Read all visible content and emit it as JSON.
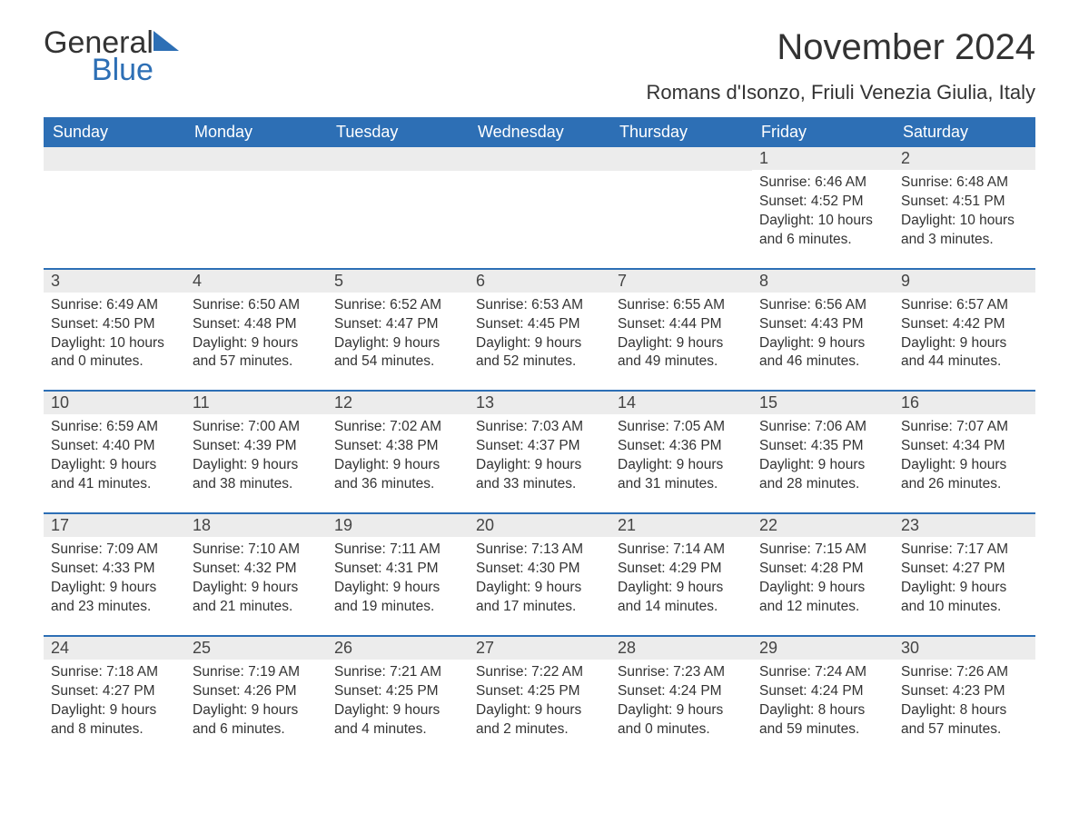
{
  "logo": {
    "line1": "General",
    "line2": "Blue"
  },
  "title": "November 2024",
  "location": "Romans d'Isonzo, Friuli Venezia Giulia, Italy",
  "accent_color": "#2d6fb5",
  "day_header_bg": "#2d6fb5",
  "day_header_fg": "#ffffff",
  "daynum_bg": "#ececec",
  "text_color": "#333333",
  "days_of_week": [
    "Sunday",
    "Monday",
    "Tuesday",
    "Wednesday",
    "Thursday",
    "Friday",
    "Saturday"
  ],
  "weeks": [
    [
      null,
      null,
      null,
      null,
      null,
      {
        "n": "1",
        "sunrise": "Sunrise: 6:46 AM",
        "sunset": "Sunset: 4:52 PM",
        "daylight1": "Daylight: 10 hours",
        "daylight2": "and 6 minutes."
      },
      {
        "n": "2",
        "sunrise": "Sunrise: 6:48 AM",
        "sunset": "Sunset: 4:51 PM",
        "daylight1": "Daylight: 10 hours",
        "daylight2": "and 3 minutes."
      }
    ],
    [
      {
        "n": "3",
        "sunrise": "Sunrise: 6:49 AM",
        "sunset": "Sunset: 4:50 PM",
        "daylight1": "Daylight: 10 hours",
        "daylight2": "and 0 minutes."
      },
      {
        "n": "4",
        "sunrise": "Sunrise: 6:50 AM",
        "sunset": "Sunset: 4:48 PM",
        "daylight1": "Daylight: 9 hours",
        "daylight2": "and 57 minutes."
      },
      {
        "n": "5",
        "sunrise": "Sunrise: 6:52 AM",
        "sunset": "Sunset: 4:47 PM",
        "daylight1": "Daylight: 9 hours",
        "daylight2": "and 54 minutes."
      },
      {
        "n": "6",
        "sunrise": "Sunrise: 6:53 AM",
        "sunset": "Sunset: 4:45 PM",
        "daylight1": "Daylight: 9 hours",
        "daylight2": "and 52 minutes."
      },
      {
        "n": "7",
        "sunrise": "Sunrise: 6:55 AM",
        "sunset": "Sunset: 4:44 PM",
        "daylight1": "Daylight: 9 hours",
        "daylight2": "and 49 minutes."
      },
      {
        "n": "8",
        "sunrise": "Sunrise: 6:56 AM",
        "sunset": "Sunset: 4:43 PM",
        "daylight1": "Daylight: 9 hours",
        "daylight2": "and 46 minutes."
      },
      {
        "n": "9",
        "sunrise": "Sunrise: 6:57 AM",
        "sunset": "Sunset: 4:42 PM",
        "daylight1": "Daylight: 9 hours",
        "daylight2": "and 44 minutes."
      }
    ],
    [
      {
        "n": "10",
        "sunrise": "Sunrise: 6:59 AM",
        "sunset": "Sunset: 4:40 PM",
        "daylight1": "Daylight: 9 hours",
        "daylight2": "and 41 minutes."
      },
      {
        "n": "11",
        "sunrise": "Sunrise: 7:00 AM",
        "sunset": "Sunset: 4:39 PM",
        "daylight1": "Daylight: 9 hours",
        "daylight2": "and 38 minutes."
      },
      {
        "n": "12",
        "sunrise": "Sunrise: 7:02 AM",
        "sunset": "Sunset: 4:38 PM",
        "daylight1": "Daylight: 9 hours",
        "daylight2": "and 36 minutes."
      },
      {
        "n": "13",
        "sunrise": "Sunrise: 7:03 AM",
        "sunset": "Sunset: 4:37 PM",
        "daylight1": "Daylight: 9 hours",
        "daylight2": "and 33 minutes."
      },
      {
        "n": "14",
        "sunrise": "Sunrise: 7:05 AM",
        "sunset": "Sunset: 4:36 PM",
        "daylight1": "Daylight: 9 hours",
        "daylight2": "and 31 minutes."
      },
      {
        "n": "15",
        "sunrise": "Sunrise: 7:06 AM",
        "sunset": "Sunset: 4:35 PM",
        "daylight1": "Daylight: 9 hours",
        "daylight2": "and 28 minutes."
      },
      {
        "n": "16",
        "sunrise": "Sunrise: 7:07 AM",
        "sunset": "Sunset: 4:34 PM",
        "daylight1": "Daylight: 9 hours",
        "daylight2": "and 26 minutes."
      }
    ],
    [
      {
        "n": "17",
        "sunrise": "Sunrise: 7:09 AM",
        "sunset": "Sunset: 4:33 PM",
        "daylight1": "Daylight: 9 hours",
        "daylight2": "and 23 minutes."
      },
      {
        "n": "18",
        "sunrise": "Sunrise: 7:10 AM",
        "sunset": "Sunset: 4:32 PM",
        "daylight1": "Daylight: 9 hours",
        "daylight2": "and 21 minutes."
      },
      {
        "n": "19",
        "sunrise": "Sunrise: 7:11 AM",
        "sunset": "Sunset: 4:31 PM",
        "daylight1": "Daylight: 9 hours",
        "daylight2": "and 19 minutes."
      },
      {
        "n": "20",
        "sunrise": "Sunrise: 7:13 AM",
        "sunset": "Sunset: 4:30 PM",
        "daylight1": "Daylight: 9 hours",
        "daylight2": "and 17 minutes."
      },
      {
        "n": "21",
        "sunrise": "Sunrise: 7:14 AM",
        "sunset": "Sunset: 4:29 PM",
        "daylight1": "Daylight: 9 hours",
        "daylight2": "and 14 minutes."
      },
      {
        "n": "22",
        "sunrise": "Sunrise: 7:15 AM",
        "sunset": "Sunset: 4:28 PM",
        "daylight1": "Daylight: 9 hours",
        "daylight2": "and 12 minutes."
      },
      {
        "n": "23",
        "sunrise": "Sunrise: 7:17 AM",
        "sunset": "Sunset: 4:27 PM",
        "daylight1": "Daylight: 9 hours",
        "daylight2": "and 10 minutes."
      }
    ],
    [
      {
        "n": "24",
        "sunrise": "Sunrise: 7:18 AM",
        "sunset": "Sunset: 4:27 PM",
        "daylight1": "Daylight: 9 hours",
        "daylight2": "and 8 minutes."
      },
      {
        "n": "25",
        "sunrise": "Sunrise: 7:19 AM",
        "sunset": "Sunset: 4:26 PM",
        "daylight1": "Daylight: 9 hours",
        "daylight2": "and 6 minutes."
      },
      {
        "n": "26",
        "sunrise": "Sunrise: 7:21 AM",
        "sunset": "Sunset: 4:25 PM",
        "daylight1": "Daylight: 9 hours",
        "daylight2": "and 4 minutes."
      },
      {
        "n": "27",
        "sunrise": "Sunrise: 7:22 AM",
        "sunset": "Sunset: 4:25 PM",
        "daylight1": "Daylight: 9 hours",
        "daylight2": "and 2 minutes."
      },
      {
        "n": "28",
        "sunrise": "Sunrise: 7:23 AM",
        "sunset": "Sunset: 4:24 PM",
        "daylight1": "Daylight: 9 hours",
        "daylight2": "and 0 minutes."
      },
      {
        "n": "29",
        "sunrise": "Sunrise: 7:24 AM",
        "sunset": "Sunset: 4:24 PM",
        "daylight1": "Daylight: 8 hours",
        "daylight2": "and 59 minutes."
      },
      {
        "n": "30",
        "sunrise": "Sunrise: 7:26 AM",
        "sunset": "Sunset: 4:23 PM",
        "daylight1": "Daylight: 8 hours",
        "daylight2": "and 57 minutes."
      }
    ]
  ]
}
